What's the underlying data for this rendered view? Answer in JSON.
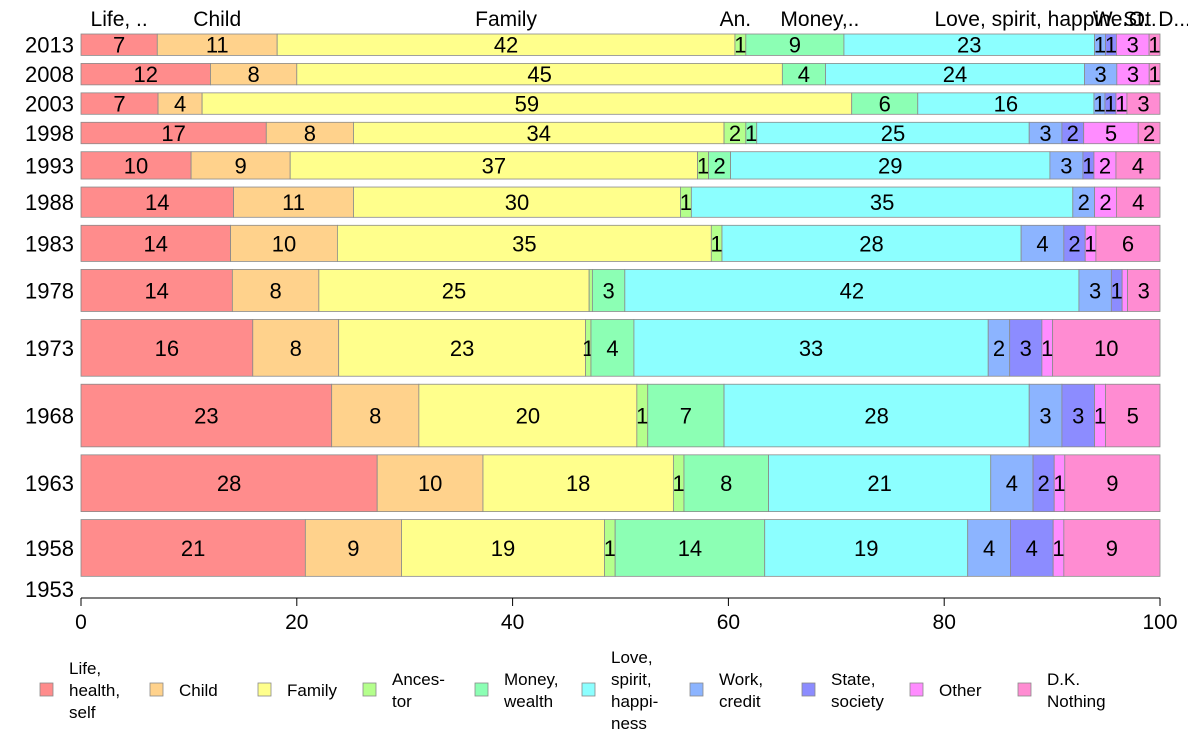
{
  "chart_data": {
    "type": "bar",
    "orientation": "horizontal",
    "stacked": true,
    "top_labels": [
      "Life, ..",
      "Child",
      "Family",
      "An.",
      "Money,..",
      "Love, spirit, happine..",
      "W.",
      "St.",
      "Ot.",
      "D..."
    ],
    "categories": [
      "2013",
      "2008",
      "2003",
      "1998",
      "1993",
      "1988",
      "1983",
      "1978",
      "1973",
      "1968",
      "1963",
      "1958",
      "1953"
    ],
    "series": [
      {
        "name": "Life, health, self",
        "color": "#ff8c8c",
        "values": [
          7,
          12,
          7,
          17,
          10,
          14,
          14,
          14,
          16,
          23,
          28,
          21,
          0
        ]
      },
      {
        "name": "Child",
        "color": "#ffd28c",
        "values": [
          11,
          8,
          4,
          8,
          9,
          11,
          10,
          8,
          8,
          8,
          10,
          9,
          0
        ]
      },
      {
        "name": "Family",
        "color": "#ffff8c",
        "values": [
          42,
          45,
          59,
          34,
          37,
          30,
          35,
          25,
          23,
          20,
          18,
          19,
          0
        ]
      },
      {
        "name": "Ances- tor",
        "color": "#b4ff8c",
        "values": [
          1,
          0,
          0,
          2,
          1,
          1,
          1,
          0.3,
          0.5,
          1,
          1,
          1,
          0
        ]
      },
      {
        "name": "Money, wealth",
        "color": "#8cffb4",
        "values": [
          9,
          4,
          6,
          1,
          2,
          0,
          0,
          3,
          4,
          7,
          8,
          14,
          0
        ]
      },
      {
        "name": "Love, spirit, happi- ness",
        "color": "#8cffff",
        "values": [
          23,
          24,
          16,
          25,
          29,
          35,
          28,
          42,
          33,
          28,
          21,
          19,
          0
        ]
      },
      {
        "name": "Work, credit",
        "color": "#8cb4ff",
        "values": [
          1,
          3,
          1,
          3,
          3,
          2,
          4,
          3,
          2,
          3,
          4,
          4,
          0
        ]
      },
      {
        "name": "State, society",
        "color": "#8c8cff",
        "values": [
          1,
          0,
          1,
          2,
          1,
          0,
          2,
          1,
          3,
          3,
          2,
          4,
          0
        ]
      },
      {
        "name": "Other",
        "color": "#ff8cff",
        "values": [
          3,
          3,
          1,
          5,
          2,
          2,
          1,
          0.5,
          1,
          1,
          1,
          1,
          0
        ]
      },
      {
        "name": "D.K. Nothing",
        "color": "#ff8cd2",
        "values": [
          1,
          1,
          3,
          2,
          4,
          4,
          6,
          3,
          10,
          5,
          9,
          9,
          0
        ]
      }
    ],
    "row_weights": [
      1,
      1,
      1,
      1,
      1.2,
      1.3,
      1.5,
      1.7,
      2.2,
      2.4,
      2.2,
      2.2,
      0.6
    ],
    "label_overrides": {
      "3": {
        "3": 2,
        "4": 1
      },
      "7": {
        "3": null,
        "8": null
      }
    },
    "xlim": [
      0,
      100
    ],
    "xticks": [
      0,
      20,
      40,
      60,
      80,
      100
    ],
    "grid": false,
    "legend_position": "bottom"
  }
}
